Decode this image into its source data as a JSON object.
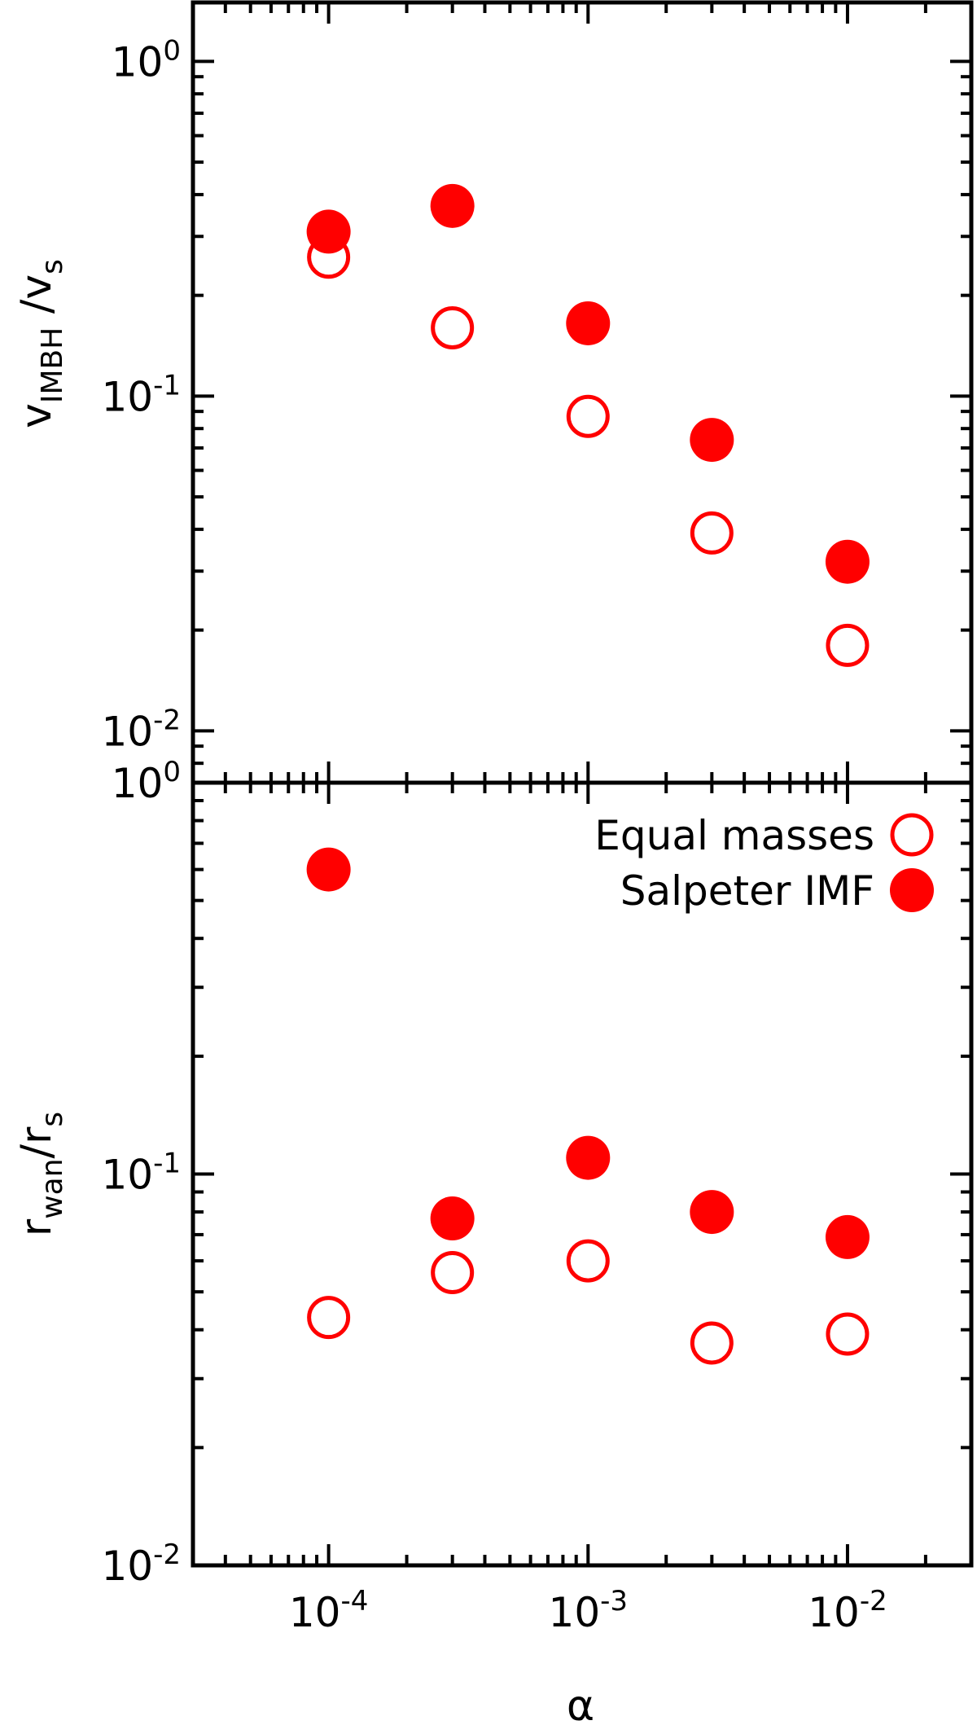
{
  "chart_data": [
    {
      "panel": "top",
      "type": "scatter",
      "xscale": "log",
      "yscale": "log",
      "xlim": [
        3e-05,
        0.03
      ],
      "ylim": [
        0.007,
        1.5
      ],
      "ylabel": {
        "main": "v",
        "sub": "IMBH",
        "rest": " /v",
        "sub2": "s"
      },
      "yticks": [
        {
          "value": 1,
          "base": "10",
          "exp": "0"
        },
        {
          "value": 0.1,
          "base": "10",
          "exp": "-1"
        },
        {
          "value": 0.01,
          "base": "10",
          "exp": "-2"
        }
      ],
      "series": [
        {
          "name": "Equal masses",
          "marker": "open-circle",
          "color": "#ff0000",
          "x": [
            0.0001,
            0.0003,
            0.001,
            0.003,
            0.01
          ],
          "y": [
            0.26,
            0.16,
            0.087,
            0.039,
            0.018
          ]
        },
        {
          "name": "Salpeter IMF",
          "marker": "filled-circle",
          "color": "#ff0000",
          "x": [
            0.0001,
            0.0003,
            0.001,
            0.003,
            0.01
          ],
          "y": [
            0.31,
            0.37,
            0.165,
            0.074,
            0.032
          ]
        }
      ]
    },
    {
      "panel": "bottom",
      "type": "scatter",
      "xscale": "log",
      "yscale": "log",
      "xlim": [
        3e-05,
        0.03
      ],
      "ylim": [
        0.01,
        1
      ],
      "xlabel": "α",
      "ylabel": {
        "main": "r",
        "sub": "wan",
        "rest": "/r",
        "sub2": "s"
      },
      "yticks": [
        {
          "value": 1,
          "base": "10",
          "exp": "0"
        },
        {
          "value": 0.1,
          "base": "10",
          "exp": "-1"
        },
        {
          "value": 0.01,
          "base": "10",
          "exp": "-2"
        }
      ],
      "xticks": [
        {
          "value": 0.0001,
          "base": "10",
          "exp": "-4"
        },
        {
          "value": 0.001,
          "base": "10",
          "exp": "-3"
        },
        {
          "value": 0.01,
          "base": "10",
          "exp": "-2"
        }
      ],
      "legend": {
        "position": "top-right"
      },
      "series": [
        {
          "name": "Equal masses",
          "marker": "open-circle",
          "color": "#ff0000",
          "x": [
            0.0001,
            0.0003,
            0.001,
            0.003,
            0.01
          ],
          "y": [
            0.043,
            0.056,
            0.06,
            0.037,
            0.039
          ]
        },
        {
          "name": "Salpeter IMF",
          "marker": "filled-circle",
          "color": "#ff0000",
          "x": [
            0.0001,
            0.0003,
            0.001,
            0.003,
            0.01
          ],
          "y": [
            0.6,
            0.077,
            0.11,
            0.08,
            0.069
          ]
        }
      ]
    }
  ]
}
